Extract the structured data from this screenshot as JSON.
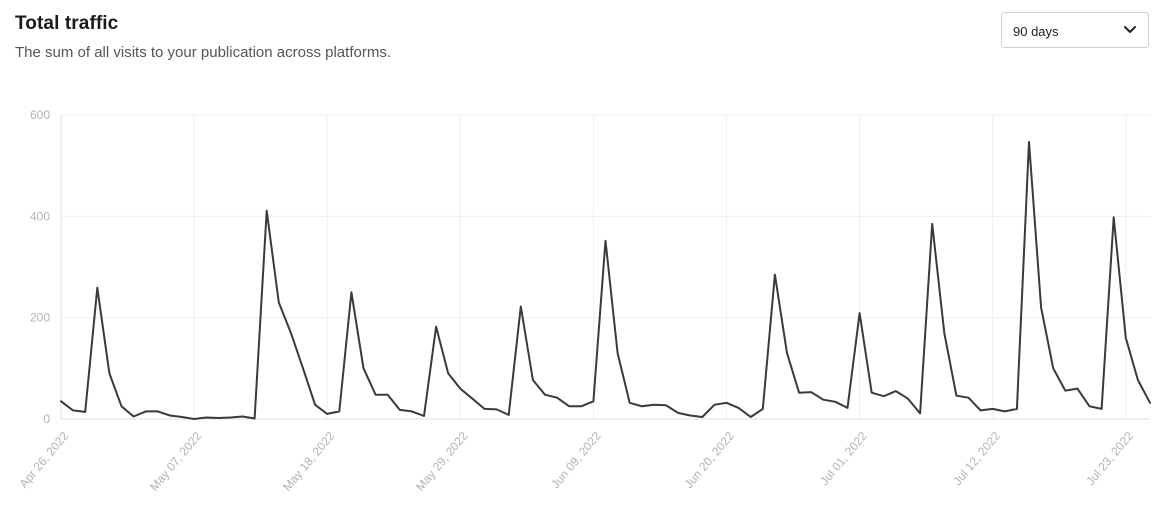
{
  "header": {
    "title": "Total traffic",
    "subtitle": "The sum of all visits to your publication across platforms."
  },
  "range_select": {
    "value": "90 days",
    "icon": "chevron-down-icon"
  },
  "colors": {
    "line": "#3a3a3a",
    "grid": "#efefef",
    "axis": "#e0e0e0",
    "tick_text": "#b3b3b3"
  },
  "chart_data": {
    "type": "line",
    "title": "",
    "xlabel": "",
    "ylabel": "",
    "ylim": [
      0,
      600
    ],
    "yticks": [
      0,
      200,
      400,
      600
    ],
    "xtick_labels": [
      "Apr 26, 2022",
      "May 07, 2022",
      "May 18, 2022",
      "May 29, 2022",
      "Jun 09, 2022",
      "Jun 20, 2022",
      "Jul 01, 2022",
      "Jul 12, 2022",
      "Jul 23, 2022"
    ],
    "xtick_indices": [
      0,
      11,
      22,
      33,
      44,
      55,
      66,
      77,
      88
    ],
    "grid": true,
    "series": [
      {
        "values": [
          35,
          17,
          14,
          259,
          90,
          25,
          5,
          15,
          15,
          7,
          4,
          0,
          3,
          2,
          3,
          5,
          1,
          411,
          230,
          170,
          100,
          28,
          10,
          15,
          250,
          100,
          48,
          48,
          18,
          15,
          6,
          182,
          90,
          60,
          40,
          20,
          19,
          8,
          222,
          77,
          48,
          42,
          25,
          25,
          35,
          352,
          130,
          32,
          25,
          28,
          27,
          12,
          7,
          4,
          28,
          32,
          22,
          4,
          20,
          285,
          130,
          52,
          53,
          38,
          34,
          22,
          209,
          52,
          45,
          55,
          40,
          11,
          385,
          170,
          46,
          42,
          17,
          20,
          15,
          20,
          547,
          220,
          100,
          56,
          60,
          25,
          20,
          398,
          160,
          77,
          32
        ]
      }
    ]
  }
}
